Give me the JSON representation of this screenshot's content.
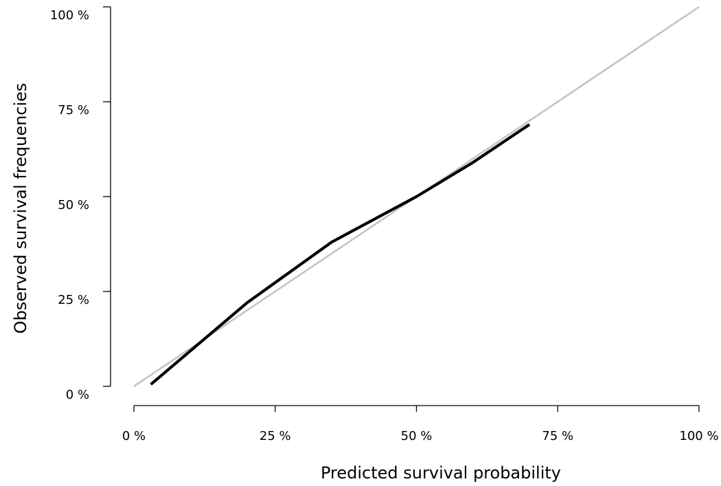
{
  "chart_data": {
    "type": "line",
    "xlabel": "Predicted survival probability",
    "ylabel": "Observed survival frequencies",
    "xlim": [
      0,
      1
    ],
    "ylim": [
      0,
      1
    ],
    "x_ticks": [
      {
        "value": 0,
        "label": "0 %"
      },
      {
        "value": 0.25,
        "label": "25 %"
      },
      {
        "value": 0.5,
        "label": "50 %"
      },
      {
        "value": 0.75,
        "label": "75 %"
      },
      {
        "value": 1,
        "label": "100 %"
      }
    ],
    "y_ticks": [
      {
        "value": 0,
        "label": "0 %"
      },
      {
        "value": 0.25,
        "label": "25 %"
      },
      {
        "value": 0.5,
        "label": "50 %"
      },
      {
        "value": 0.75,
        "label": "75 %"
      },
      {
        "value": 1,
        "label": "100 %"
      }
    ],
    "grid": false,
    "series": [
      {
        "role": "reference",
        "color": "#c4c4c4",
        "x": [
          0,
          1
        ],
        "y": [
          0,
          1
        ]
      },
      {
        "role": "calibration",
        "color": "#000000",
        "x": [
          0.03,
          0.2,
          0.35,
          0.5,
          0.6,
          0.7
        ],
        "y": [
          0.005,
          0.22,
          0.38,
          0.5,
          0.59,
          0.69
        ]
      }
    ]
  }
}
